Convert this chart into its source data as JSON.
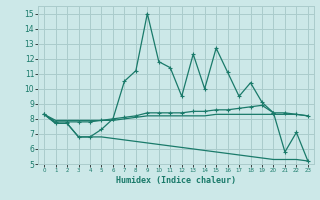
{
  "title": "",
  "xlabel": "Humidex (Indice chaleur)",
  "ylabel": "",
  "bg_color": "#cce8e8",
  "grid_color": "#aacccc",
  "line_color": "#1a7a6a",
  "x": [
    0,
    1,
    2,
    3,
    4,
    5,
    6,
    7,
    8,
    9,
    10,
    11,
    12,
    13,
    14,
    15,
    16,
    17,
    18,
    19,
    20,
    21,
    22,
    23
  ],
  "line_max": [
    8.3,
    7.7,
    7.7,
    6.8,
    6.8,
    7.3,
    8.0,
    10.5,
    11.2,
    15.0,
    11.8,
    11.4,
    9.5,
    12.3,
    10.0,
    12.7,
    11.1,
    9.5,
    10.4,
    9.1,
    8.4,
    5.8,
    7.1,
    5.2
  ],
  "line_mid": [
    8.3,
    7.8,
    7.8,
    7.8,
    7.8,
    7.9,
    8.0,
    8.1,
    8.2,
    8.4,
    8.4,
    8.4,
    8.4,
    8.5,
    8.5,
    8.6,
    8.6,
    8.7,
    8.8,
    8.9,
    8.4,
    8.4,
    8.3,
    8.2
  ],
  "line_avg": [
    8.3,
    7.9,
    7.9,
    7.9,
    7.9,
    7.9,
    7.9,
    8.0,
    8.1,
    8.2,
    8.2,
    8.2,
    8.2,
    8.2,
    8.2,
    8.3,
    8.3,
    8.3,
    8.3,
    8.3,
    8.3,
    8.3,
    8.3,
    8.2
  ],
  "line_min": [
    8.3,
    7.7,
    7.7,
    6.8,
    6.8,
    6.8,
    6.7,
    6.6,
    6.5,
    6.4,
    6.3,
    6.2,
    6.1,
    6.0,
    5.9,
    5.8,
    5.7,
    5.6,
    5.5,
    5.4,
    5.3,
    5.3,
    5.3,
    5.2
  ],
  "ylim": [
    5,
    15.5
  ],
  "xlim": [
    -0.5,
    23.5
  ],
  "yticks": [
    5,
    6,
    7,
    8,
    9,
    10,
    11,
    12,
    13,
    14,
    15
  ],
  "xticks": [
    0,
    1,
    2,
    3,
    4,
    5,
    6,
    7,
    8,
    9,
    10,
    11,
    12,
    13,
    14,
    15,
    16,
    17,
    18,
    19,
    20,
    21,
    22,
    23
  ]
}
